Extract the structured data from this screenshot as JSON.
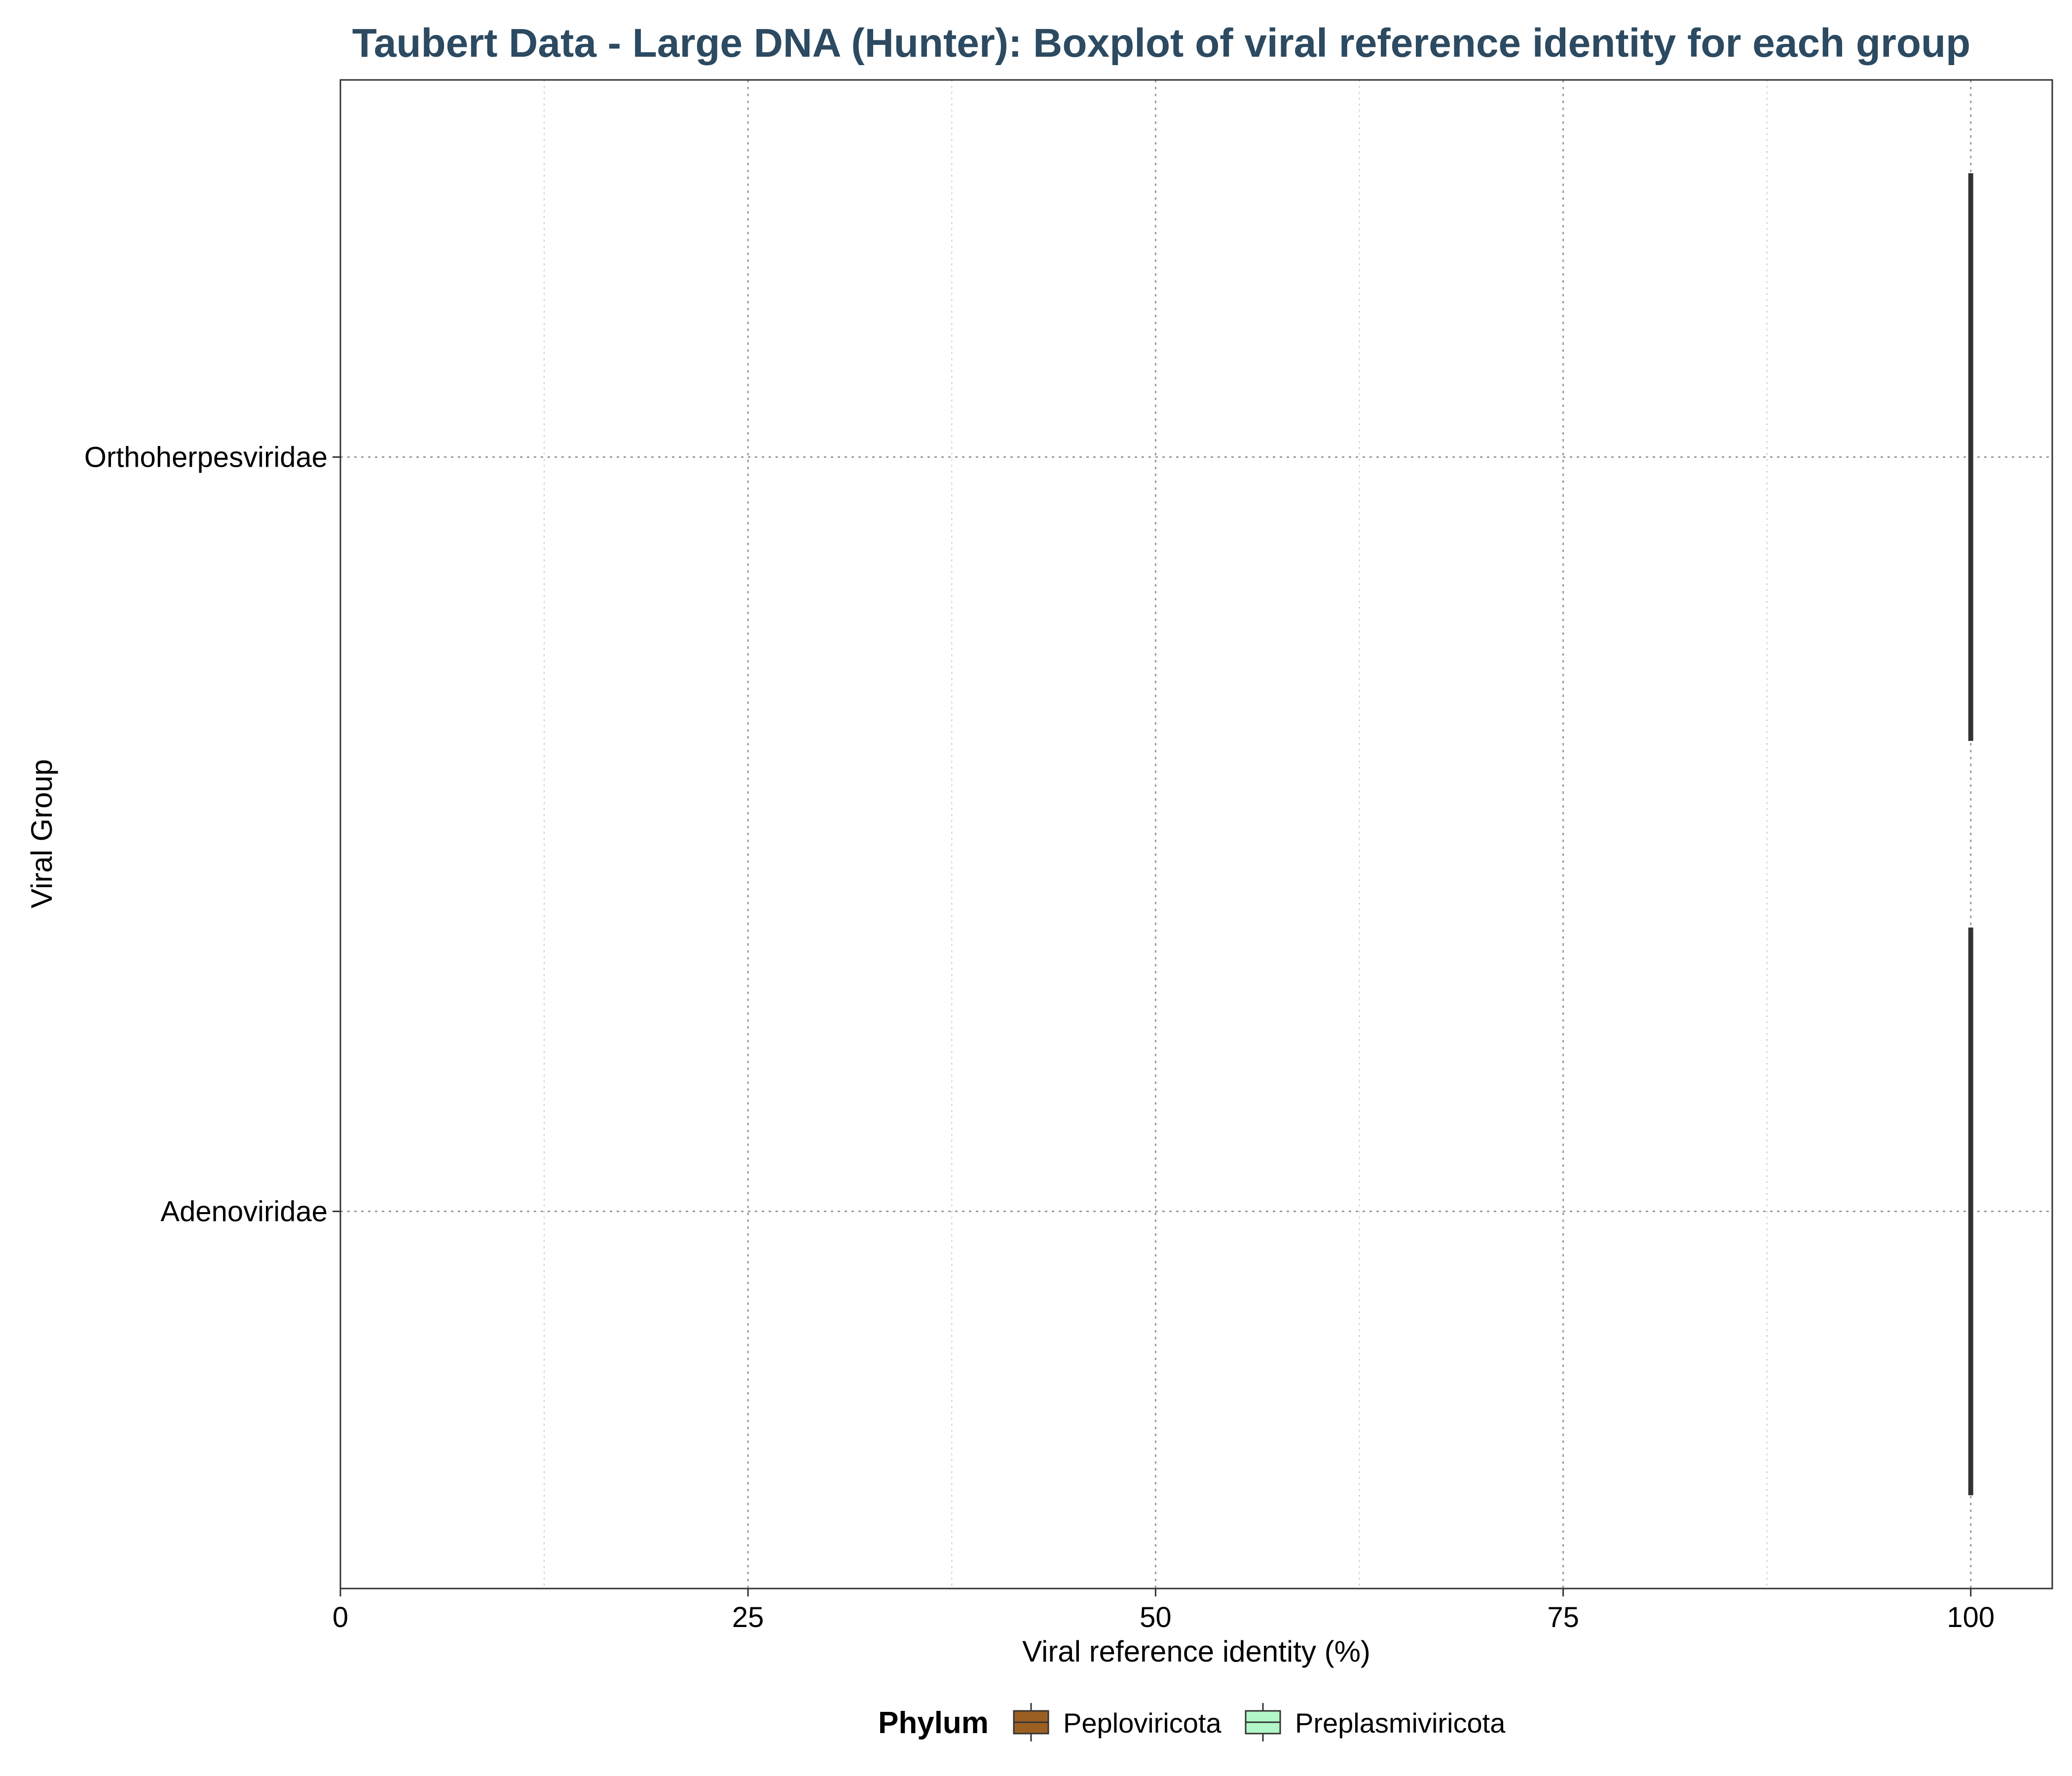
{
  "chart_data": {
    "type": "boxplot",
    "orientation": "horizontal",
    "title": "Taubert Data - Large DNA (Hunter): Boxplot of viral reference identity for each group",
    "xlabel": "Viral reference identity (%)",
    "ylabel": "Viral Group",
    "xlim": [
      0,
      105
    ],
    "x_ticks": [
      0,
      25,
      50,
      75,
      100
    ],
    "x_tick_labels": [
      "0",
      "25",
      "50",
      "75",
      "100"
    ],
    "categories": [
      "Adenoviridae",
      "Orthoherpesviridae"
    ],
    "boxes": [
      {
        "category": "Adenoviridae",
        "phylum": "Preplasmiviricota",
        "min": 100,
        "q1": 100,
        "median": 100,
        "q3": 100,
        "max": 100
      },
      {
        "category": "Orthoherpesviridae",
        "phylum": "Peploviricota",
        "min": 100,
        "q1": 100,
        "median": 100,
        "q3": 100,
        "max": 100
      }
    ],
    "grid": true,
    "legend": {
      "title": "Phylum",
      "position": "bottom",
      "entries": [
        {
          "label": "Peploviricota",
          "color": "#9c5f22"
        },
        {
          "label": "Preplasmiviricota",
          "color": "#b2f7c8"
        }
      ]
    },
    "colors": {
      "title": "#2c4a61",
      "box_line": "#333333",
      "grid": "#999999",
      "axis": "#333333"
    }
  }
}
